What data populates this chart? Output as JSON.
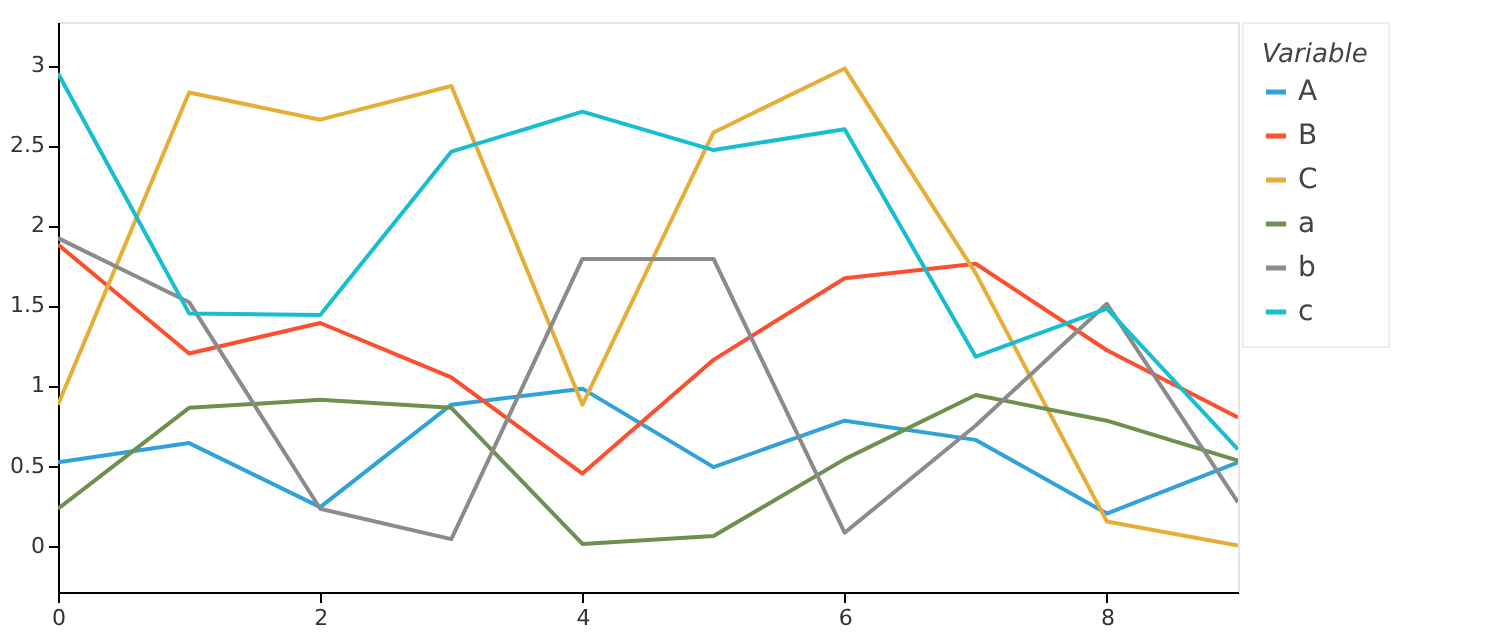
{
  "chart_data": {
    "type": "line",
    "legend_title": "Variable",
    "legend": "right",
    "grid": false,
    "x": [
      0,
      1,
      2,
      3,
      4,
      5,
      6,
      7,
      8,
      9
    ],
    "xlim": [
      0,
      9
    ],
    "xticks": [
      0,
      2,
      4,
      6,
      8
    ],
    "ylim": [
      -0.29,
      3.27
    ],
    "yticks": [
      0,
      0.5,
      1,
      1.5,
      2,
      2.5,
      3
    ],
    "series": [
      {
        "name": "A",
        "color": "#30a2da",
        "values": [
          0.52,
          0.64,
          0.24,
          0.88,
          0.98,
          0.49,
          0.78,
          0.66,
          0.2,
          0.52
        ]
      },
      {
        "name": "B",
        "color": "#fc4f30",
        "values": [
          1.88,
          1.2,
          1.39,
          1.05,
          0.45,
          1.16,
          1.67,
          1.76,
          1.22,
          0.8
        ]
      },
      {
        "name": "C",
        "color": "#e5ae38",
        "values": [
          0.88,
          2.83,
          2.66,
          2.87,
          0.88,
          2.58,
          2.98,
          1.7,
          0.15,
          0.0
        ]
      },
      {
        "name": "a",
        "color": "#6d904f",
        "values": [
          0.23,
          0.86,
          0.91,
          0.86,
          0.01,
          0.06,
          0.54,
          0.94,
          0.78,
          0.53
        ]
      },
      {
        "name": "b",
        "color": "#8b8b8b",
        "values": [
          1.92,
          1.52,
          0.23,
          0.04,
          1.79,
          1.79,
          0.08,
          0.75,
          1.51,
          0.27
        ]
      },
      {
        "name": "c",
        "color": "#17becf",
        "values": [
          2.95,
          1.45,
          1.44,
          2.46,
          2.71,
          2.47,
          2.6,
          1.18,
          1.48,
          0.6
        ]
      }
    ]
  }
}
